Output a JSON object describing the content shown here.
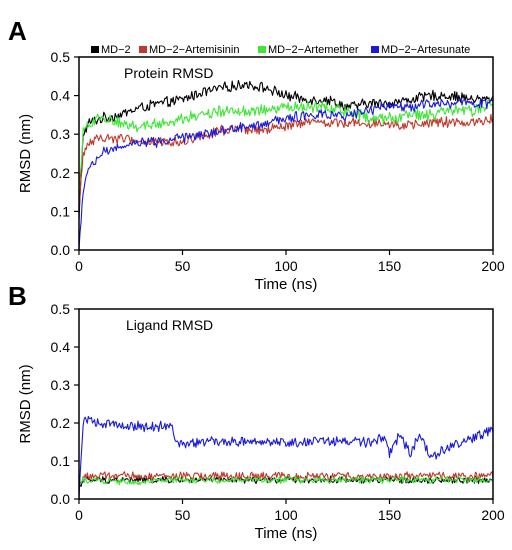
{
  "chart_data": [
    {
      "type": "line",
      "panel": "A",
      "title": "Protein RMSD",
      "xlabel": "Time (ns)",
      "ylabel": "RMSD (nm)",
      "xlim": [
        0,
        200
      ],
      "ylim": [
        0,
        0.5
      ],
      "x_ticks": [
        0,
        50,
        100,
        150,
        200
      ],
      "y_ticks": [
        0.0,
        0.1,
        0.2,
        0.3,
        0.4,
        0.5
      ],
      "x_tick_labels": [
        "0",
        "50",
        "100",
        "150",
        "200"
      ],
      "y_tick_labels": [
        "0.0",
        "0.1",
        "0.2",
        "0.3",
        "0.4",
        "0.5"
      ],
      "grid": false,
      "legend_position": "top",
      "x": [
        0,
        2,
        5,
        10,
        20,
        30,
        40,
        50,
        60,
        70,
        80,
        90,
        100,
        110,
        120,
        130,
        140,
        150,
        160,
        170,
        180,
        190,
        200
      ],
      "series": [
        {
          "name": "MD−2",
          "color": "#000000",
          "noise": 0.012,
          "values": [
            0.08,
            0.3,
            0.33,
            0.34,
            0.35,
            0.37,
            0.38,
            0.39,
            0.41,
            0.42,
            0.43,
            0.42,
            0.4,
            0.39,
            0.39,
            0.37,
            0.38,
            0.38,
            0.39,
            0.4,
            0.4,
            0.39,
            0.39
          ]
        },
        {
          "name": "MD−2−Artemisinin",
          "color": "#c0392b",
          "noise": 0.012,
          "values": [
            0.1,
            0.25,
            0.28,
            0.29,
            0.29,
            0.28,
            0.28,
            0.28,
            0.3,
            0.31,
            0.31,
            0.31,
            0.32,
            0.33,
            0.33,
            0.33,
            0.33,
            0.33,
            0.32,
            0.33,
            0.33,
            0.33,
            0.34
          ]
        },
        {
          "name": "MD−2−Artemether",
          "color": "#3ee636",
          "noise": 0.014,
          "values": [
            0.15,
            0.3,
            0.33,
            0.34,
            0.33,
            0.32,
            0.33,
            0.34,
            0.35,
            0.36,
            0.36,
            0.36,
            0.37,
            0.37,
            0.37,
            0.36,
            0.34,
            0.34,
            0.35,
            0.35,
            0.36,
            0.36,
            0.38
          ]
        },
        {
          "name": "MD−2−Artesunate",
          "color": "#1a1adb",
          "noise": 0.012,
          "values": [
            0.0,
            0.15,
            0.21,
            0.25,
            0.27,
            0.28,
            0.28,
            0.29,
            0.3,
            0.31,
            0.32,
            0.33,
            0.34,
            0.35,
            0.35,
            0.35,
            0.36,
            0.37,
            0.37,
            0.38,
            0.38,
            0.38,
            0.38
          ]
        }
      ]
    },
    {
      "type": "line",
      "panel": "B",
      "title": "Ligand RMSD",
      "xlabel": "Time (ns)",
      "ylabel": "RMSD (nm)",
      "xlim": [
        0,
        200
      ],
      "ylim": [
        0,
        0.5
      ],
      "x_ticks": [
        0,
        50,
        100,
        150,
        200
      ],
      "y_ticks": [
        0.0,
        0.1,
        0.2,
        0.3,
        0.4,
        0.5
      ],
      "x_tick_labels": [
        "0",
        "50",
        "100",
        "150",
        "200"
      ],
      "y_tick_labels": [
        "0.0",
        "0.1",
        "0.2",
        "0.3",
        "0.4",
        "0.5"
      ],
      "grid": false,
      "x": [
        0,
        2,
        5,
        10,
        20,
        30,
        40,
        45,
        47,
        50,
        60,
        80,
        100,
        120,
        140,
        148,
        150,
        155,
        160,
        165,
        170,
        180,
        190,
        200
      ],
      "series": [
        {
          "name": "MD−2",
          "color": "#000000",
          "noise": 0.008,
          "values": [
            0.03,
            0.05,
            0.05,
            0.05,
            0.05,
            0.05,
            0.05,
            0.05,
            0.05,
            0.05,
            0.05,
            0.05,
            0.05,
            0.05,
            0.05,
            0.05,
            0.05,
            0.05,
            0.05,
            0.05,
            0.05,
            0.05,
            0.05,
            0.05
          ]
        },
        {
          "name": "MD−2−Artemisinin",
          "color": "#c0392b",
          "noise": 0.01,
          "values": [
            0.03,
            0.06,
            0.06,
            0.06,
            0.06,
            0.06,
            0.06,
            0.06,
            0.06,
            0.06,
            0.06,
            0.06,
            0.06,
            0.06,
            0.06,
            0.06,
            0.06,
            0.06,
            0.06,
            0.06,
            0.06,
            0.06,
            0.06,
            0.06
          ]
        },
        {
          "name": "MD−2−Artemether",
          "color": "#3ee636",
          "noise": 0.008,
          "values": [
            0.03,
            0.05,
            0.05,
            0.05,
            0.045,
            0.045,
            0.05,
            0.05,
            0.05,
            0.05,
            0.05,
            0.05,
            0.05,
            0.05,
            0.05,
            0.05,
            0.05,
            0.05,
            0.05,
            0.05,
            0.05,
            0.05,
            0.05,
            0.05
          ]
        },
        {
          "name": "MD−2−Artesunate",
          "color": "#1a1adb",
          "noise": 0.012,
          "values": [
            0.0,
            0.2,
            0.21,
            0.2,
            0.2,
            0.19,
            0.19,
            0.19,
            0.15,
            0.14,
            0.15,
            0.15,
            0.15,
            0.15,
            0.15,
            0.16,
            0.12,
            0.17,
            0.12,
            0.17,
            0.11,
            0.14,
            0.16,
            0.18
          ]
        }
      ]
    }
  ],
  "panels": [
    {
      "letter": "A"
    },
    {
      "letter": "B"
    }
  ]
}
